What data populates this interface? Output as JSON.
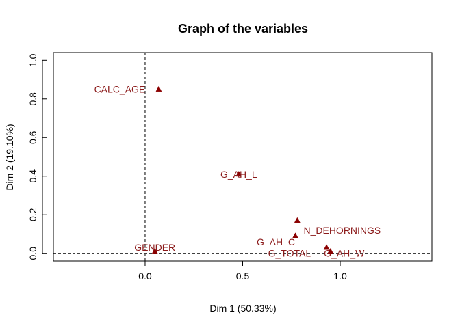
{
  "chart_data": {
    "type": "scatter",
    "title": "Graph of the variables",
    "xlabel": "Dim 1 (50.33%)",
    "ylabel": "Dim 2 (19.10%)",
    "xlim": [
      -0.47,
      1.47
    ],
    "ylim": [
      -0.04,
      1.04
    ],
    "x_ticks": [
      "0.0",
      "0.5",
      "1.0"
    ],
    "x_tick_values": [
      0,
      0.5,
      1
    ],
    "y_ticks": [
      "0.0",
      "0.2",
      "0.4",
      "0.6",
      "0.8",
      "1.0"
    ],
    "y_tick_values": [
      0,
      0.2,
      0.4,
      0.6,
      0.8,
      1.0
    ],
    "reference_lines": {
      "x": 0,
      "y": 0,
      "style": "dashed"
    },
    "marker_color": "#8B0000",
    "label_color": "#8B1A1A",
    "points": [
      {
        "label": "CALC_AGE",
        "x": 0.07,
        "y": 0.85,
        "label_dx": -0.2,
        "label_dy": 0.0
      },
      {
        "label": "G_AH_L",
        "x": 0.48,
        "y": 0.41,
        "label_dx": 0.0,
        "label_dy": 0.0
      },
      {
        "label": "N_DEHORNINGS",
        "x": 0.78,
        "y": 0.17,
        "label_dx": 0.23,
        "label_dy": -0.05
      },
      {
        "label": "G_AH_C",
        "x": 0.77,
        "y": 0.09,
        "label_dx": -0.1,
        "label_dy": -0.03
      },
      {
        "label": "G_AH_W",
        "x": 0.93,
        "y": 0.03,
        "label_dx": 0.09,
        "label_dy": -0.03
      },
      {
        "label": "G_TOTAL",
        "x": 0.95,
        "y": 0.01,
        "label_dx": -0.21,
        "label_dy": -0.01
      },
      {
        "label": "GENDER",
        "x": 0.05,
        "y": 0.01,
        "label_dx": 0.0,
        "label_dy": 0.02
      }
    ]
  }
}
